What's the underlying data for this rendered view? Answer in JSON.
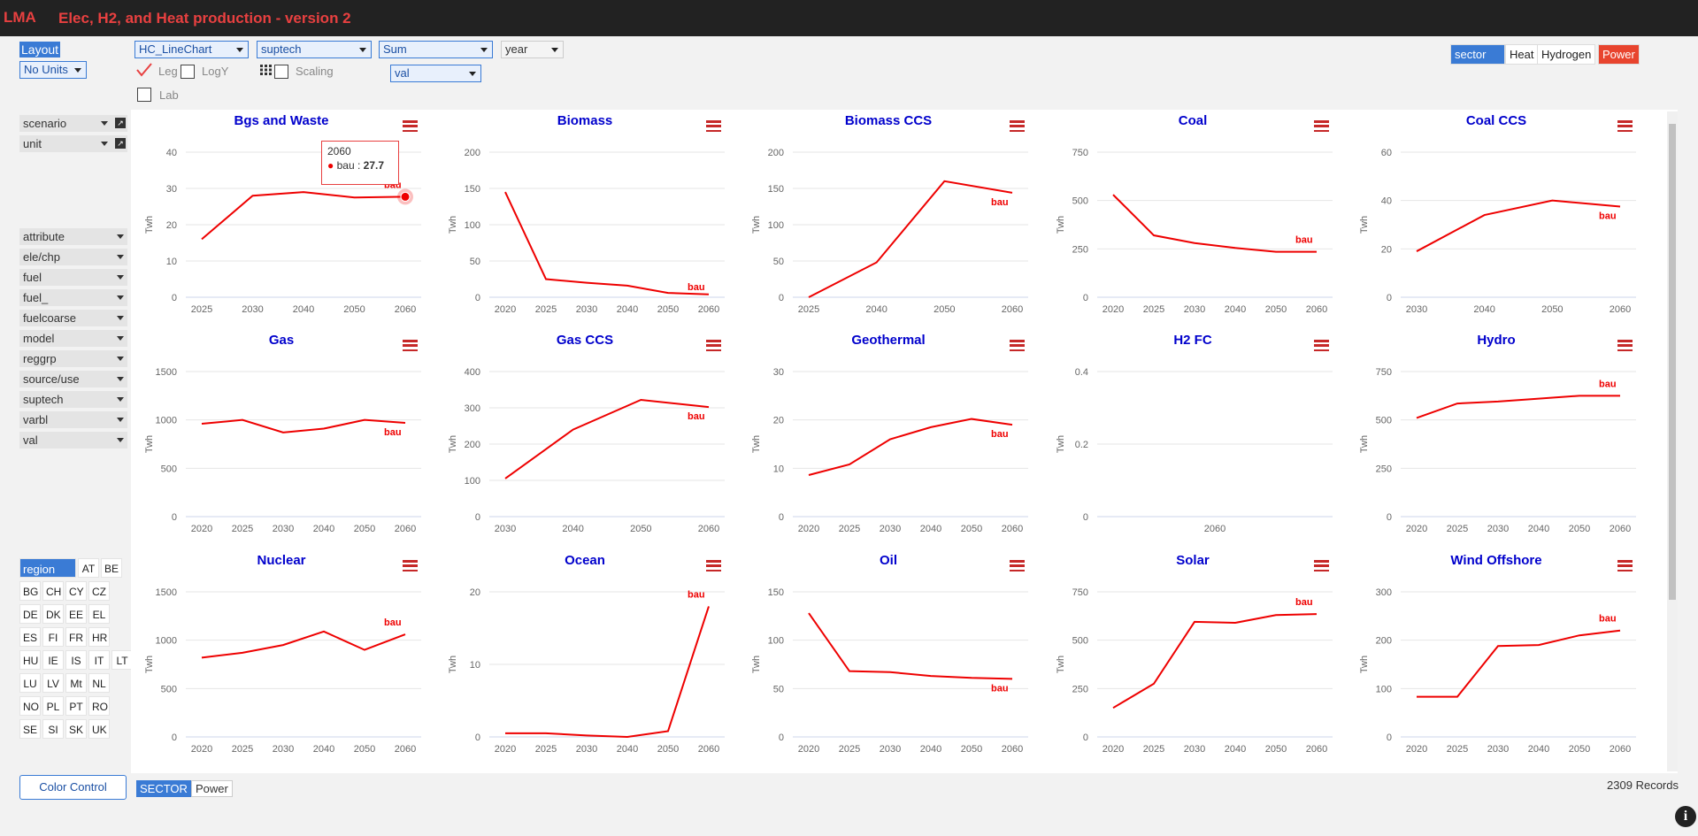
{
  "header": {
    "logo": "LMA",
    "title": "Elec, H2, and Heat production - version 2"
  },
  "toolbar": {
    "layout_label": "Layout",
    "units_select": "No Units",
    "chart_type": "HC_LineChart",
    "series_field": "suptech",
    "aggregate": "Sum",
    "x_field": "year",
    "value_field": "val",
    "leg_label": "Leg",
    "logy_label": "LogY",
    "scaling_label": "Scaling",
    "lab_label": "Lab",
    "leg_checked": true
  },
  "sector_filter": {
    "label": "sector",
    "options": [
      "Heat",
      "Hydrogen",
      "Power"
    ],
    "selected": "Power"
  },
  "dimensions_top": [
    {
      "label": "scenario"
    },
    {
      "label": "unit"
    }
  ],
  "dimensions": [
    "attribute",
    "ele/chp",
    "fuel",
    "fuel_",
    "fuelcoarse",
    "model",
    "reggrp",
    "source/use",
    "suptech",
    "varbl",
    "val"
  ],
  "region": {
    "label": "region",
    "items": [
      "AT",
      "BE",
      "BG",
      "CH",
      "CY",
      "CZ",
      "DE",
      "DK",
      "EE",
      "EL",
      "ES",
      "FI",
      "FR",
      "HR",
      "HU",
      "IE",
      "IS",
      "IT",
      "LT",
      "LU",
      "LV",
      "Mt",
      "NL",
      "NO",
      "PL",
      "PT",
      "RO",
      "SE",
      "SI",
      "SK",
      "UK"
    ]
  },
  "footer": {
    "color_control": "Color Control",
    "sector_tag": "SECTOR",
    "sector_value": "Power",
    "records": "2309 Records"
  },
  "tooltip": {
    "year": "2060",
    "series": "bau",
    "value": "27.7"
  },
  "colors": {
    "line": "#ee0000",
    "title": "#0000cc",
    "accent": "#3a7bd5",
    "menu": "#c62828"
  },
  "chart_data": [
    {
      "type": "line",
      "title": "Bgs and Waste",
      "ylabel": "Twh",
      "categories": [
        "2025",
        "2030",
        "2040",
        "2050",
        "2060"
      ],
      "yticks": [
        0,
        10,
        20,
        30,
        40
      ],
      "ylim": [
        0,
        40
      ],
      "series": [
        {
          "name": "bau",
          "values": [
            16,
            28,
            29,
            27.5,
            27.7
          ]
        }
      ]
    },
    {
      "type": "line",
      "title": "Biomass",
      "ylabel": "Twh",
      "categories": [
        "2020",
        "2025",
        "2030",
        "2040",
        "2050",
        "2060"
      ],
      "yticks": [
        0,
        50,
        100,
        150,
        200
      ],
      "ylim": [
        0,
        200
      ],
      "series": [
        {
          "name": "bau",
          "values": [
            145,
            25,
            20,
            16,
            6,
            4
          ]
        }
      ]
    },
    {
      "type": "line",
      "title": "Biomass CCS",
      "ylabel": "Twh",
      "categories": [
        "2025",
        "2040",
        "2050",
        "2060"
      ],
      "yticks": [
        0,
        50,
        100,
        150,
        200
      ],
      "ylim": [
        0,
        200
      ],
      "series": [
        {
          "name": "bau",
          "values": [
            0,
            48,
            160,
            144
          ]
        }
      ]
    },
    {
      "type": "line",
      "title": "Coal",
      "ylabel": "Twh",
      "categories": [
        "2020",
        "2025",
        "2030",
        "2040",
        "2050",
        "2060"
      ],
      "yticks": [
        0,
        250,
        500,
        750
      ],
      "ylim": [
        0,
        750
      ],
      "series": [
        {
          "name": "bau",
          "values": [
            530,
            320,
            280,
            255,
            235,
            235
          ]
        }
      ]
    },
    {
      "type": "line",
      "title": "Coal CCS",
      "ylabel": "Twh",
      "categories": [
        "2030",
        "2040",
        "2050",
        "2060"
      ],
      "yticks": [
        0,
        20,
        40,
        60
      ],
      "ylim": [
        0,
        60
      ],
      "series": [
        {
          "name": "bau",
          "values": [
            19,
            34,
            40,
            37.5
          ]
        }
      ]
    },
    {
      "type": "line",
      "title": "Gas",
      "ylabel": "Twh",
      "categories": [
        "2020",
        "2025",
        "2030",
        "2040",
        "2050",
        "2060"
      ],
      "yticks": [
        0,
        500,
        1000,
        1500
      ],
      "ylim": [
        0,
        1500
      ],
      "series": [
        {
          "name": "bau",
          "values": [
            960,
            1000,
            870,
            910,
            1000,
            970
          ]
        }
      ]
    },
    {
      "type": "line",
      "title": "Gas CCS",
      "ylabel": "Twh",
      "categories": [
        "2030",
        "2040",
        "2050",
        "2060"
      ],
      "yticks": [
        0,
        100,
        200,
        300,
        400
      ],
      "ylim": [
        0,
        400
      ],
      "series": [
        {
          "name": "bau",
          "values": [
            105,
            240,
            322,
            302
          ]
        }
      ]
    },
    {
      "type": "line",
      "title": "Geothermal",
      "ylabel": "Twh",
      "categories": [
        "2020",
        "2025",
        "2030",
        "2040",
        "2050",
        "2060"
      ],
      "yticks": [
        0,
        10,
        20,
        30
      ],
      "ylim": [
        0,
        30
      ],
      "series": [
        {
          "name": "bau",
          "values": [
            8.6,
            10.8,
            16,
            18.5,
            20.2,
            19
          ]
        }
      ]
    },
    {
      "type": "line",
      "title": "H2 FC",
      "ylabel": "Twh",
      "categories": [
        "2060"
      ],
      "yticks": [
        0,
        0.2,
        0.4
      ],
      "ylim": [
        0,
        0.4
      ],
      "series": [
        {
          "name": "bau",
          "values": [
            0
          ]
        }
      ],
      "hide_line": true
    },
    {
      "type": "line",
      "title": "Hydro",
      "ylabel": "Twh",
      "categories": [
        "2020",
        "2025",
        "2030",
        "2040",
        "2050",
        "2060"
      ],
      "yticks": [
        0,
        250,
        500,
        750
      ],
      "ylim": [
        0,
        750
      ],
      "series": [
        {
          "name": "bau",
          "values": [
            510,
            585,
            595,
            610,
            625,
            625
          ]
        }
      ]
    },
    {
      "type": "line",
      "title": "Nuclear",
      "ylabel": "Twh",
      "categories": [
        "2020",
        "2025",
        "2030",
        "2040",
        "2050",
        "2060"
      ],
      "yticks": [
        0,
        500,
        1000,
        1500
      ],
      "ylim": [
        0,
        1500
      ],
      "series": [
        {
          "name": "bau",
          "values": [
            820,
            870,
            950,
            1090,
            900,
            1060
          ]
        }
      ]
    },
    {
      "type": "line",
      "title": "Ocean",
      "ylabel": "Twh",
      "categories": [
        "2020",
        "2025",
        "2030",
        "2040",
        "2050",
        "2060"
      ],
      "yticks": [
        0,
        10,
        20
      ],
      "ylim": [
        0,
        20
      ],
      "series": [
        {
          "name": "bau",
          "values": [
            0.5,
            0.5,
            0.2,
            0,
            0.8,
            18
          ]
        }
      ]
    },
    {
      "type": "line",
      "title": "Oil",
      "ylabel": "Twh",
      "categories": [
        "2020",
        "2025",
        "2030",
        "2040",
        "2050",
        "2060"
      ],
      "yticks": [
        0,
        50,
        100,
        150
      ],
      "ylim": [
        0,
        150
      ],
      "series": [
        {
          "name": "bau",
          "values": [
            128,
            68,
            67,
            63,
            61,
            60
          ]
        }
      ]
    },
    {
      "type": "line",
      "title": "Solar",
      "ylabel": "Twh",
      "categories": [
        "2020",
        "2025",
        "2030",
        "2040",
        "2050",
        "2060"
      ],
      "yticks": [
        0,
        250,
        500,
        750
      ],
      "ylim": [
        0,
        750
      ],
      "series": [
        {
          "name": "bau",
          "values": [
            150,
            275,
            595,
            590,
            630,
            635
          ]
        }
      ]
    },
    {
      "type": "line",
      "title": "Wind Offshore",
      "ylabel": "Twh",
      "categories": [
        "2020",
        "2025",
        "2030",
        "2040",
        "2050",
        "2060"
      ],
      "yticks": [
        0,
        100,
        200,
        300
      ],
      "ylim": [
        0,
        300
      ],
      "series": [
        {
          "name": "bau",
          "values": [
            83,
            83,
            188,
            190,
            210,
            220
          ]
        }
      ]
    }
  ]
}
